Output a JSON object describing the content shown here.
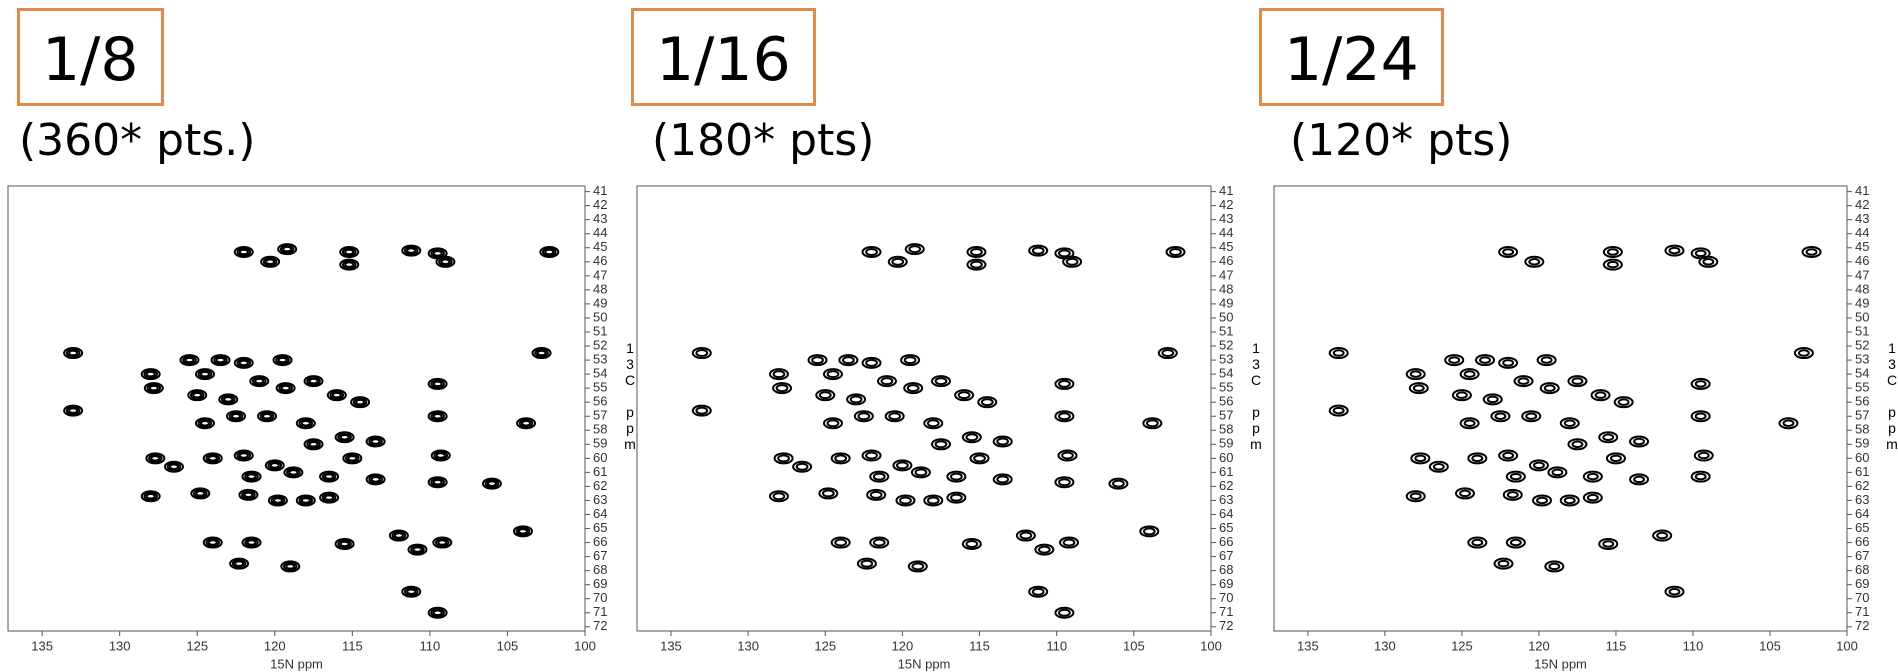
{
  "chart_data": [
    {
      "type": "scatter",
      "title": "1/8",
      "subtitle": "(360* pts.)",
      "xlabel": "15N ppm",
      "ylabel": "13C ppm",
      "color": "#000000",
      "xlim": [
        137.2,
        100
      ],
      "ylim": [
        40.6,
        72.3
      ],
      "xticks": [
        135,
        130,
        125,
        120,
        115,
        110,
        105,
        100
      ],
      "yticks": [
        41,
        42,
        43,
        44,
        45,
        46,
        47,
        48,
        49,
        50,
        51,
        52,
        53,
        54,
        55,
        56,
        57,
        58,
        59,
        60,
        61,
        62,
        63,
        64,
        65,
        66,
        67,
        68,
        69,
        70,
        71,
        72
      ],
      "x": [
        122,
        120.3,
        119.2,
        115.2,
        115.2,
        111.2,
        109.5,
        109,
        102.3,
        133,
        102.8,
        133,
        103.8,
        128,
        125.5,
        124.5,
        123.5,
        122,
        119.5,
        127.8,
        125,
        123,
        121,
        119.3,
        117.5,
        116,
        114.5,
        122.5,
        124.5,
        120.5,
        118,
        115.5,
        113.5,
        109.5,
        109.5,
        109.3,
        127.7,
        126.5,
        124,
        122,
        120,
        117.5,
        115,
        116.5,
        113.5,
        118.8,
        121.5,
        128,
        124.8,
        121.7,
        119.8,
        118,
        116.5,
        109.5,
        106,
        104,
        112,
        124,
        121.5,
        115.5,
        110.8,
        109.2,
        122.3,
        119,
        111.2,
        109.5
      ],
      "y": [
        45.3,
        46,
        45.1,
        45.3,
        46.2,
        45.2,
        45.4,
        46,
        45.3,
        52.5,
        52.5,
        56.6,
        57.5,
        54,
        53,
        54,
        53,
        53.2,
        53,
        55,
        55.5,
        55.8,
        54.5,
        55,
        54.5,
        55.5,
        56,
        57,
        57.5,
        57,
        57.5,
        58.5,
        58.8,
        54.7,
        57,
        59.8,
        60,
        60.6,
        60,
        59.8,
        60.5,
        59,
        60,
        61.3,
        61.5,
        61,
        61.3,
        62.7,
        62.5,
        62.6,
        63,
        63,
        62.8,
        61.7,
        61.8,
        65.2,
        65.5,
        66,
        66,
        66.1,
        66.5,
        66,
        67.5,
        67.7,
        69.5,
        71
      ]
    },
    {
      "type": "scatter",
      "title": "1/16",
      "subtitle": "(180* pts)",
      "xlabel": "15N ppm",
      "ylabel": "13C ppm",
      "color": "#000000",
      "xlim": [
        137.2,
        100
      ],
      "ylim": [
        40.6,
        72.3
      ],
      "xticks": [
        135,
        130,
        125,
        120,
        115,
        110,
        105,
        100
      ],
      "yticks": [
        41,
        42,
        43,
        44,
        45,
        46,
        47,
        48,
        49,
        50,
        51,
        52,
        53,
        54,
        55,
        56,
        57,
        58,
        59,
        60,
        61,
        62,
        63,
        64,
        65,
        66,
        67,
        68,
        69,
        70,
        71,
        72
      ],
      "x": [
        122,
        120.3,
        119.2,
        115.2,
        115.2,
        111.2,
        109.5,
        109,
        102.3,
        133,
        102.8,
        133,
        103.8,
        128,
        125.5,
        124.5,
        123.5,
        122,
        119.5,
        127.8,
        125,
        123,
        121,
        119.3,
        117.5,
        116,
        114.5,
        122.5,
        124.5,
        120.5,
        118,
        115.5,
        113.5,
        109.5,
        109.5,
        109.3,
        127.7,
        126.5,
        124,
        122,
        120,
        117.5,
        115,
        116.5,
        113.5,
        118.8,
        121.5,
        128,
        124.8,
        121.7,
        119.8,
        118,
        116.5,
        109.5,
        106,
        104,
        112,
        124,
        121.5,
        115.5,
        110.8,
        109.2,
        122.3,
        119,
        111.2,
        109.5
      ],
      "y": [
        45.3,
        46,
        45.1,
        45.3,
        46.2,
        45.2,
        45.4,
        46,
        45.3,
        52.5,
        52.5,
        56.6,
        57.5,
        54,
        53,
        54,
        53,
        53.2,
        53,
        55,
        55.5,
        55.8,
        54.5,
        55,
        54.5,
        55.5,
        56,
        57,
        57.5,
        57,
        57.5,
        58.5,
        58.8,
        54.7,
        57,
        59.8,
        60,
        60.6,
        60,
        59.8,
        60.5,
        59,
        60,
        61.3,
        61.5,
        61,
        61.3,
        62.7,
        62.5,
        62.6,
        63,
        63,
        62.8,
        61.7,
        61.8,
        65.2,
        65.5,
        66,
        66,
        66.1,
        66.5,
        66,
        67.5,
        67.7,
        69.5,
        71
      ]
    },
    {
      "type": "scatter",
      "title": "1/24",
      "subtitle": "(120* pts)",
      "xlabel": "15N ppm",
      "ylabel": "13C ppm",
      "color": "#000000",
      "xlim": [
        137.2,
        100
      ],
      "ylim": [
        40.6,
        72.3
      ],
      "xticks": [
        135,
        130,
        125,
        120,
        115,
        110,
        105,
        100
      ],
      "yticks": [
        41,
        42,
        43,
        44,
        45,
        46,
        47,
        48,
        49,
        50,
        51,
        52,
        53,
        54,
        55,
        56,
        57,
        58,
        59,
        60,
        61,
        62,
        63,
        64,
        65,
        66,
        67,
        68,
        69,
        70,
        71,
        72
      ],
      "x": [
        122,
        120.3,
        115.2,
        115.2,
        111.2,
        109.5,
        109,
        102.3,
        133,
        102.8,
        133,
        103.8,
        128,
        125.5,
        124.5,
        123.5,
        122,
        119.5,
        127.8,
        125,
        123,
        121,
        119.3,
        117.5,
        116,
        114.5,
        122.5,
        124.5,
        120.5,
        118,
        115.5,
        113.5,
        109.5,
        109.5,
        109.3,
        127.7,
        126.5,
        124,
        122,
        120,
        117.5,
        115,
        116.5,
        113.5,
        118.8,
        121.5,
        128,
        124.8,
        121.7,
        119.8,
        118,
        116.5,
        109.5,
        124,
        121.5,
        115.5,
        112,
        122.3,
        119,
        111.2
      ],
      "y": [
        45.3,
        46,
        45.3,
        46.2,
        45.2,
        45.4,
        46,
        45.3,
        52.5,
        52.5,
        56.6,
        57.5,
        54,
        53,
        54,
        53,
        53.2,
        53,
        55,
        55.5,
        55.8,
        54.5,
        55,
        54.5,
        55.5,
        56,
        57,
        57.5,
        57,
        57.5,
        58.5,
        58.8,
        54.7,
        57,
        59.8,
        60,
        60.6,
        60,
        59.8,
        60.5,
        59,
        60,
        61.3,
        61.5,
        61,
        61.3,
        62.7,
        62.5,
        62.6,
        63,
        63,
        62.8,
        61.3,
        66,
        66,
        66.1,
        65.5,
        67.5,
        67.7,
        69.5
      ]
    }
  ]
}
